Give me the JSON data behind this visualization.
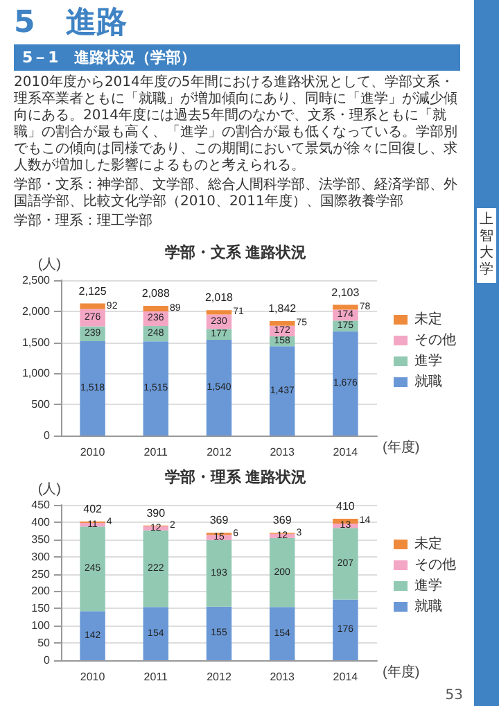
{
  "chart_data": [
    {
      "type": "bar",
      "title": "学部・文系 進路状況",
      "ylabel": "(人)",
      "xlabel": "(年度)",
      "stacked": true,
      "data_labels": true,
      "grid": "y",
      "legend": "right",
      "annotations": [
        "5　進路",
        "5－1　進路状況（学部）",
        "2010年度から2014年度の5年間における進路状況として、学部文系・理系卒業者ともに「就職」が増加傾向にあり、同時に「進学」が減少傾向にある。2014年度には過去5年間のなかで、文系・理系ともに「就職」の割合が最も高く、「進学」の割合が最も低くなっている。学部別でもこの傾向は同様であり、この期間において景気が徐々に回復し、求人数が増加した影響によるものと考えられる。",
        "学部・文系：神学部、文学部、総合人間科学部、法学部、経済学部、外国語学部、比較文化学部（2010、2011年度）、国際教養学部",
        "学部・理系：理工学部",
        "上智大学"
      ],
      "categories": [
        "2010",
        "2011",
        "2012",
        "2013",
        "2014"
      ],
      "ylim": [
        0,
        2500
      ],
      "yticks": [
        0,
        500,
        {
          "value": 1000,
          "label": "1,000"
        },
        {
          "value": 1500,
          "label": "1,500"
        },
        {
          "value": 2000,
          "label": "2,000"
        },
        {
          "value": 2500,
          "label": "2,500"
        }
      ],
      "totals": [
        "2,125",
        "2,088",
        "2,018",
        "1,842",
        "2,103"
      ],
      "series": [
        {
          "name": "就職",
          "color": "#6a98d6",
          "values": [
            1518,
            1515,
            1540,
            1437,
            1676
          ],
          "value_labels": [
            "1,518",
            "1,515",
            "1,540",
            "1,437",
            "1,676"
          ]
        },
        {
          "name": "進学",
          "color": "#92c9b3",
          "values": [
            239,
            248,
            177,
            158,
            175
          ]
        },
        {
          "name": "その他",
          "color": "#f4a7c5",
          "values": [
            276,
            236,
            230,
            172,
            174
          ]
        },
        {
          "name": "未定",
          "color": "#ef8a3d",
          "values": [
            92,
            89,
            71,
            75,
            78
          ]
        }
      ]
    },
    {
      "type": "bar",
      "title": "学部・理系 進路状況",
      "ylabel": "(人)",
      "xlabel": "(年度)",
      "stacked": true,
      "data_labels": true,
      "grid": "y",
      "legend": "right",
      "annotations": [
        "53"
      ],
      "categories": [
        "2010",
        "2011",
        "2012",
        "2013",
        "2014"
      ],
      "ylim": [
        0,
        450
      ],
      "yticks": [
        0,
        50,
        100,
        150,
        200,
        250,
        300,
        350,
        400,
        450
      ],
      "totals": [
        "402",
        "390",
        "369",
        "369",
        "410"
      ],
      "series": [
        {
          "name": "就職",
          "color": "#6a98d6",
          "values": [
            142,
            154,
            155,
            154,
            176
          ]
        },
        {
          "name": "進学",
          "color": "#92c9b3",
          "values": [
            245,
            222,
            193,
            200,
            207
          ]
        },
        {
          "name": "その他",
          "color": "#f4a7c5",
          "values": [
            11,
            12,
            15,
            12,
            13
          ]
        },
        {
          "name": "未定",
          "color": "#ef8a3d",
          "values": [
            4,
            2,
            6,
            3,
            14
          ]
        }
      ]
    }
  ]
}
